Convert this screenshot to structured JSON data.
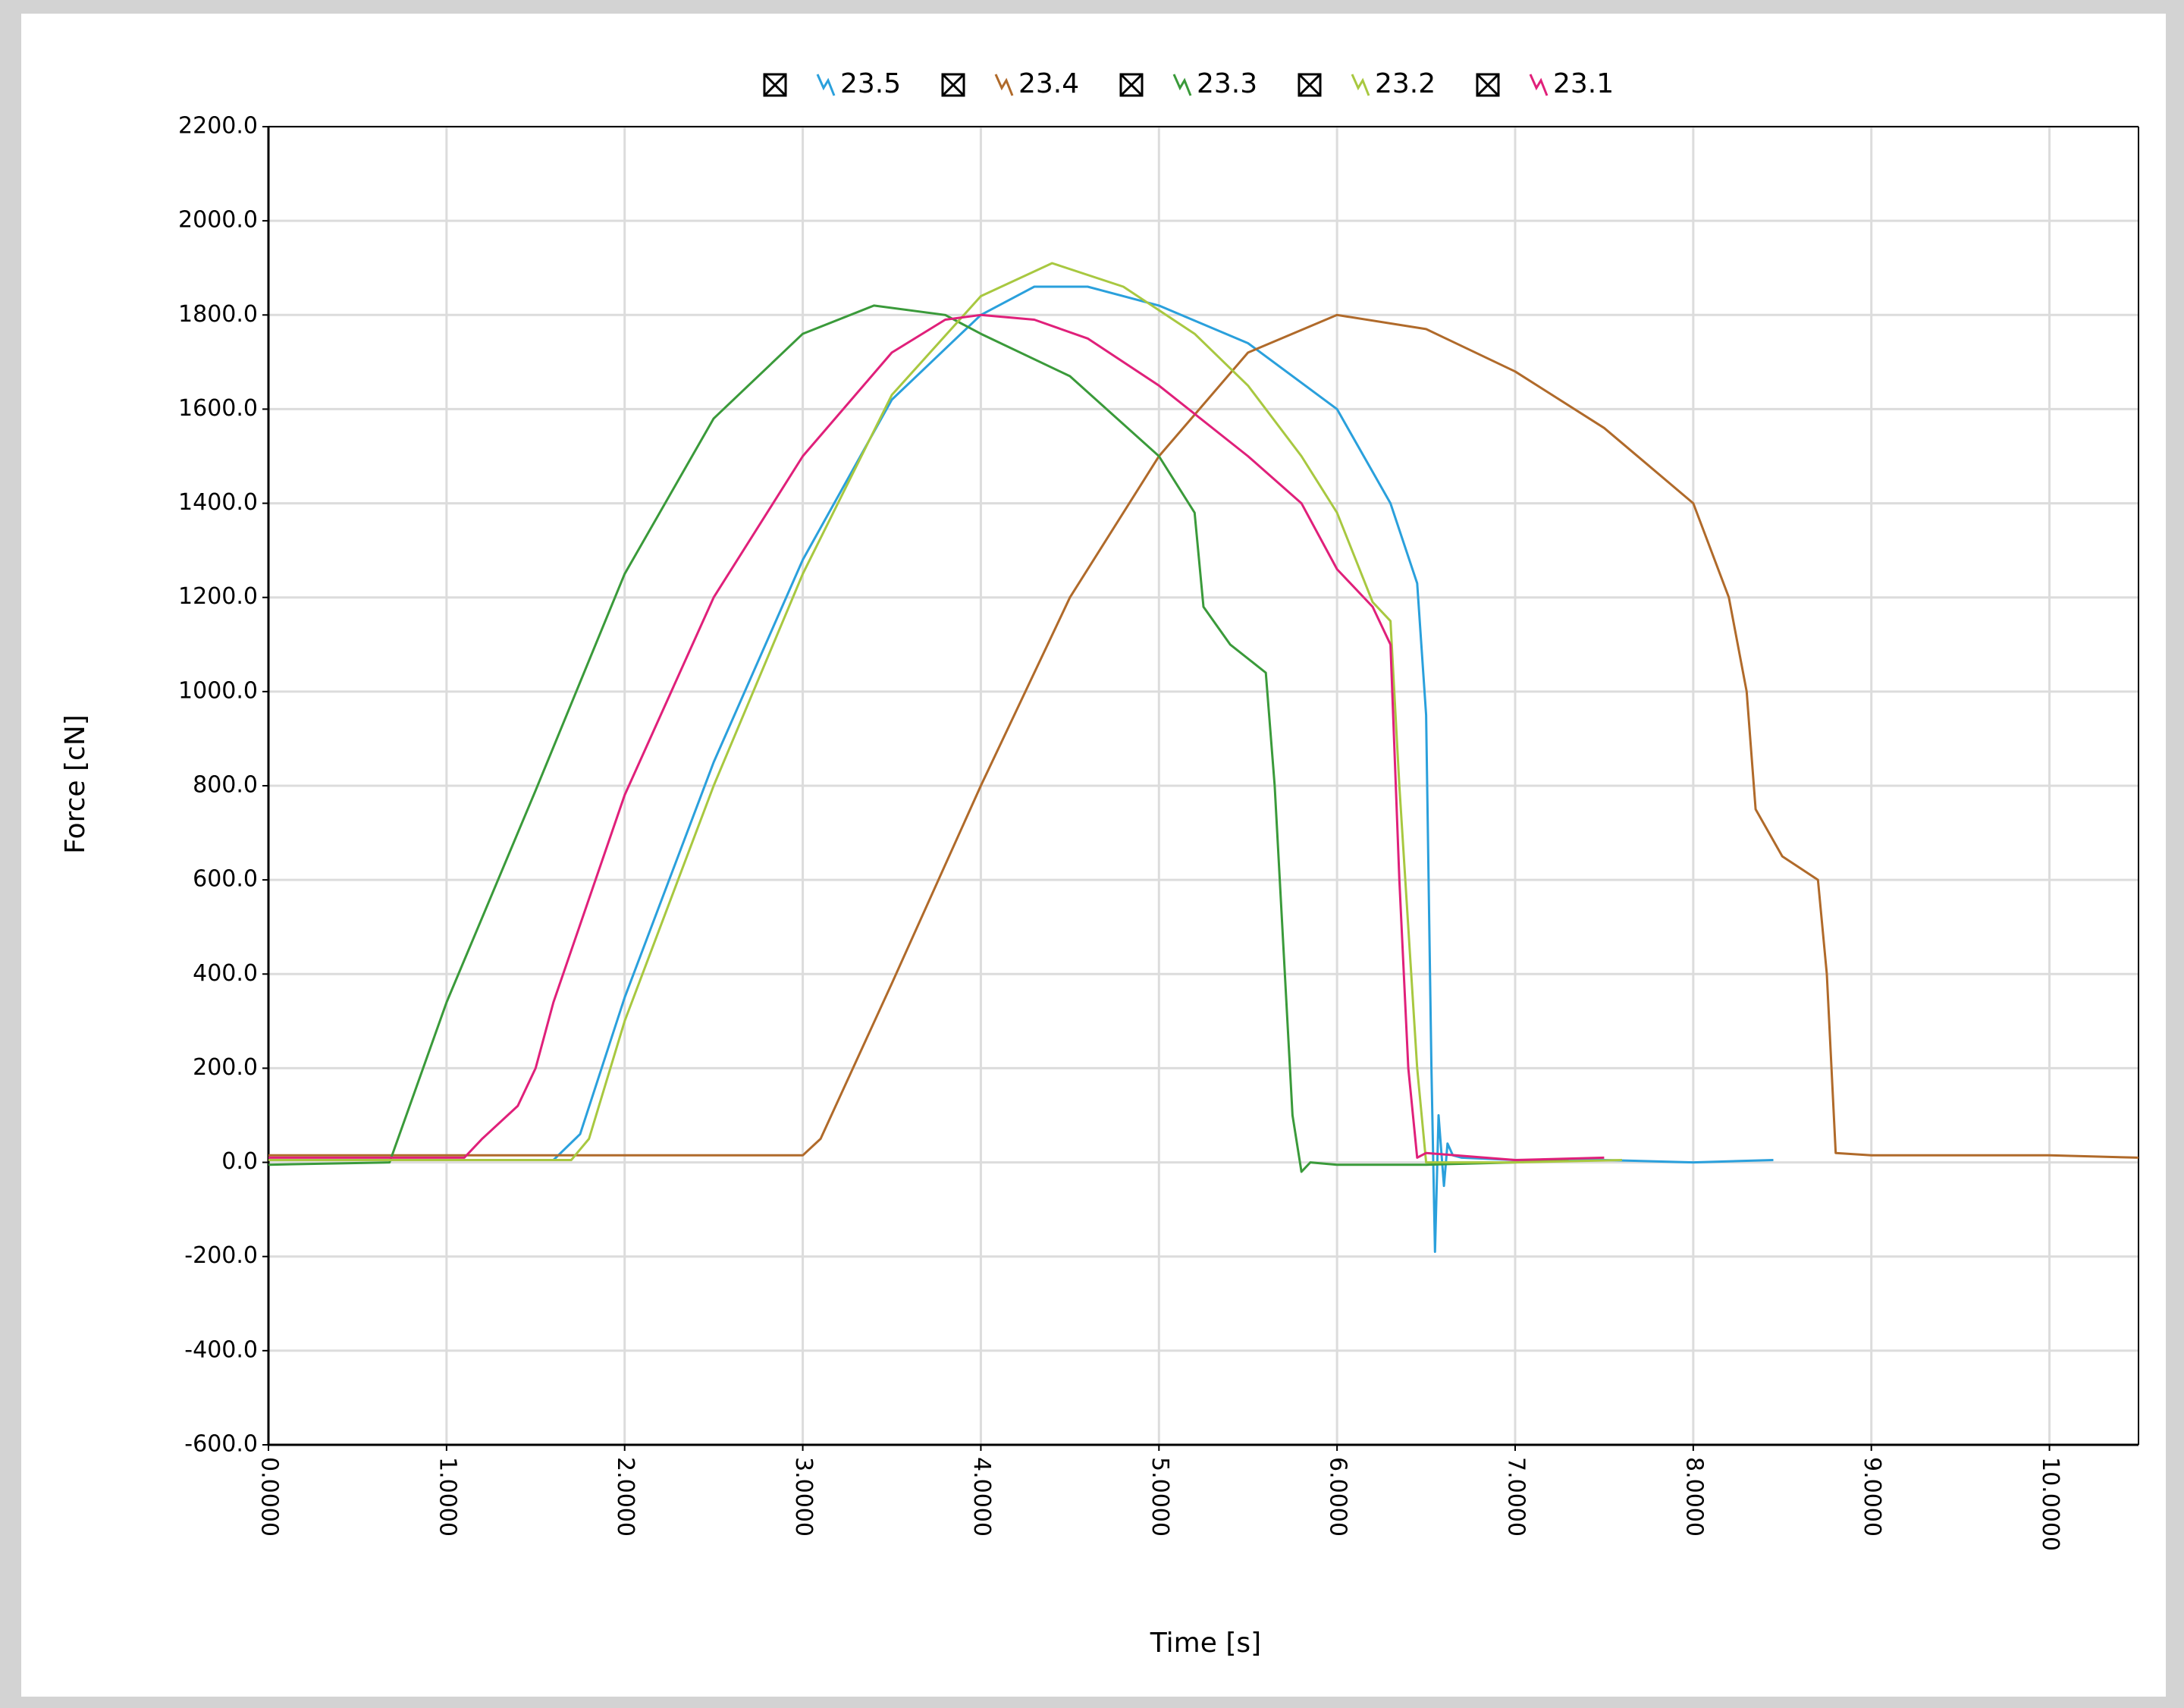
{
  "chart_data": {
    "type": "line",
    "x_label": "Time [s]",
    "y_label": "Force [cN]",
    "xlim": [
      0,
      10.5
    ],
    "ylim": [
      -600,
      2200
    ],
    "grid": true,
    "legend": "top",
    "xticks": [
      {
        "value": 0,
        "label": "0.0000"
      },
      {
        "value": 1,
        "label": "1.0000"
      },
      {
        "value": 2,
        "label": "2.0000"
      },
      {
        "value": 3,
        "label": "3.0000"
      },
      {
        "value": 4,
        "label": "4.0000"
      },
      {
        "value": 5,
        "label": "5.0000"
      },
      {
        "value": 6,
        "label": "6.0000"
      },
      {
        "value": 7,
        "label": "7.0000"
      },
      {
        "value": 8,
        "label": "8.0000"
      },
      {
        "value": 9,
        "label": "9.0000"
      },
      {
        "value": 10,
        "label": "10.0000"
      }
    ],
    "yticks": [
      {
        "value": 2200,
        "label": "2200.0"
      },
      {
        "value": 2000,
        "label": "2000.0"
      },
      {
        "value": 1800,
        "label": "1800.0"
      },
      {
        "value": 1600,
        "label": "1600.0"
      },
      {
        "value": 1400,
        "label": "1400.0"
      },
      {
        "value": 1200,
        "label": "1200.0"
      },
      {
        "value": 1000,
        "label": "1000.0"
      },
      {
        "value": 800,
        "label": "800.0"
      },
      {
        "value": 600,
        "label": "600.0"
      },
      {
        "value": 400,
        "label": "400.0"
      },
      {
        "value": 200,
        "label": "200.0"
      },
      {
        "value": 0,
        "label": "0.0"
      },
      {
        "value": -200,
        "label": "-200.0"
      },
      {
        "value": -400,
        "label": "-400.0"
      },
      {
        "value": -600,
        "label": "-600.0"
      }
    ],
    "series": [
      {
        "name": "23.5",
        "color": "#2aa0dc",
        "x": [
          0,
          0.5,
          1.0,
          1.6,
          1.75,
          2.0,
          2.5,
          3.0,
          3.5,
          4.0,
          4.3,
          4.6,
          5.0,
          5.5,
          6.0,
          6.3,
          6.45,
          6.5,
          6.53,
          6.55,
          6.57,
          6.6,
          6.62,
          6.65,
          6.7,
          7.0,
          7.5,
          8.0,
          8.45
        ],
        "values": [
          5,
          5,
          5,
          5,
          60,
          350,
          850,
          1280,
          1620,
          1800,
          1860,
          1860,
          1820,
          1740,
          1600,
          1400,
          1230,
          950,
          200,
          -190,
          100,
          -50,
          40,
          15,
          10,
          5,
          5,
          0,
          5
        ]
      },
      {
        "name": "23.4",
        "color": "#b06a2a",
        "x": [
          0,
          1.0,
          2.0,
          3.0,
          3.1,
          3.5,
          4.0,
          4.5,
          5.0,
          5.5,
          6.0,
          6.5,
          7.0,
          7.5,
          8.0,
          8.2,
          8.3,
          8.35,
          8.5,
          8.7,
          8.75,
          8.8,
          9.0,
          10.0,
          10.5
        ],
        "values": [
          15,
          15,
          15,
          15,
          50,
          380,
          800,
          1200,
          1500,
          1720,
          1800,
          1770,
          1680,
          1560,
          1400,
          1200,
          1000,
          750,
          650,
          600,
          400,
          20,
          15,
          15,
          10
        ]
      },
      {
        "name": "23.3",
        "color": "#3a9a3a",
        "x": [
          0,
          0.68,
          1.0,
          1.5,
          2.0,
          2.5,
          3.0,
          3.4,
          3.8,
          4.0,
          4.5,
          5.0,
          5.2,
          5.25,
          5.4,
          5.6,
          5.65,
          5.75,
          5.8,
          5.85,
          6.0,
          6.5,
          7.0,
          7.3
        ],
        "values": [
          -5,
          0,
          340,
          790,
          1250,
          1580,
          1760,
          1820,
          1800,
          1760,
          1670,
          1500,
          1380,
          1180,
          1100,
          1040,
          800,
          100,
          -20,
          0,
          -5,
          -5,
          0,
          5
        ]
      },
      {
        "name": "23.2",
        "color": "#a8c840",
        "x": [
          0,
          1.0,
          1.7,
          1.8,
          2.0,
          2.5,
          3.0,
          3.5,
          4.0,
          4.4,
          4.8,
          5.2,
          5.5,
          5.8,
          6.0,
          6.2,
          6.3,
          6.35,
          6.45,
          6.5,
          7.0,
          7.6
        ],
        "values": [
          5,
          5,
          5,
          50,
          300,
          800,
          1250,
          1630,
          1840,
          1910,
          1860,
          1760,
          1650,
          1500,
          1380,
          1190,
          1150,
          800,
          200,
          0,
          0,
          5
        ]
      },
      {
        "name": "23.1",
        "color": "#e0207a",
        "x": [
          0,
          1.1,
          1.2,
          1.4,
          1.5,
          1.6,
          2.0,
          2.5,
          3.0,
          3.5,
          3.8,
          4.0,
          4.3,
          4.6,
          5.0,
          5.5,
          5.8,
          6.0,
          6.2,
          6.3,
          6.35,
          6.4,
          6.45,
          6.5,
          7.0,
          7.5
        ],
        "values": [
          10,
          10,
          50,
          120,
          200,
          340,
          780,
          1200,
          1500,
          1720,
          1790,
          1800,
          1790,
          1750,
          1650,
          1500,
          1400,
          1260,
          1180,
          1100,
          600,
          200,
          10,
          20,
          5,
          10
        ]
      }
    ]
  }
}
